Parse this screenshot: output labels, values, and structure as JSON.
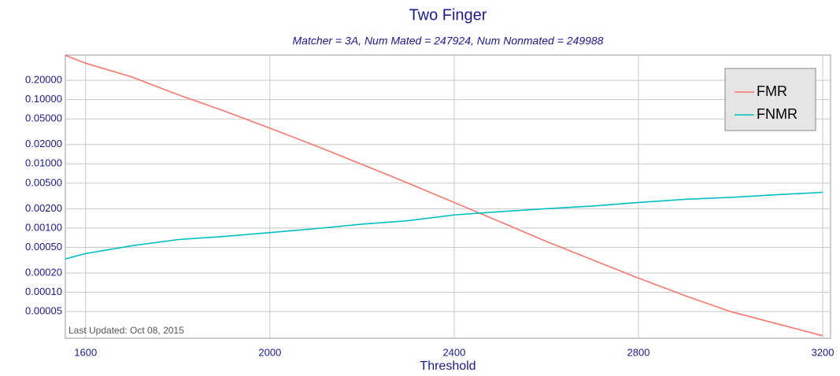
{
  "chart_data": {
    "type": "line",
    "title": "Two Finger",
    "subtitle": "Matcher = 3A,   Num Mated = 247924,   Num Nonmated = 249988",
    "x_label": "Threshold",
    "annotation": "Last Updated: Oct 08, 2015",
    "x": [
      1556,
      1600,
      1700,
      1800,
      1900,
      2000,
      2100,
      2200,
      2300,
      2400,
      2500,
      2600,
      2700,
      2800,
      2900,
      3000,
      3100,
      3200
    ],
    "series": [
      {
        "name": "FMR",
        "color": "#f8766d",
        "values": [
          0.49,
          0.37,
          0.226,
          0.12,
          0.067,
          0.036,
          0.019,
          0.0098,
          0.005,
          0.0025,
          0.00125,
          0.00062,
          0.00032,
          0.000166,
          8.9e-05,
          5e-05,
          3.24e-05,
          2.1e-05
        ]
      },
      {
        "name": "FNMR",
        "color": "#00bfc4",
        "values": [
          0.00033,
          0.0004,
          0.00053,
          0.00066,
          0.00074,
          0.00085,
          0.00098,
          0.00115,
          0.0013,
          0.0016,
          0.0018,
          0.002,
          0.0022,
          0.0025,
          0.0028,
          0.003,
          0.0033,
          0.0036
        ]
      }
    ],
    "xlim": [
      1556,
      3217
    ],
    "xticks": [
      1600,
      2000,
      2400,
      2800,
      3200
    ],
    "ylim": [
      1.92e-05,
      0.495
    ],
    "log_y": true,
    "yticks": [
      {
        "value": 0.2,
        "label": "0.20000"
      },
      {
        "value": 0.1,
        "label": "0.10000"
      },
      {
        "value": 0.05,
        "label": "0.05000"
      },
      {
        "value": 0.02,
        "label": "0.02000"
      },
      {
        "value": 0.01,
        "label": "0.01000"
      },
      {
        "value": 0.005,
        "label": "0.00500"
      },
      {
        "value": 0.002,
        "label": "0.00200"
      },
      {
        "value": 0.001,
        "label": "0.00100"
      },
      {
        "value": 0.0005,
        "label": "0.00050"
      },
      {
        "value": 0.0002,
        "label": "0.00020"
      },
      {
        "value": 0.0001,
        "label": "0.00010"
      },
      {
        "value": 5e-05,
        "label": "0.00005"
      }
    ],
    "grid": true,
    "legend": "top-right"
  }
}
